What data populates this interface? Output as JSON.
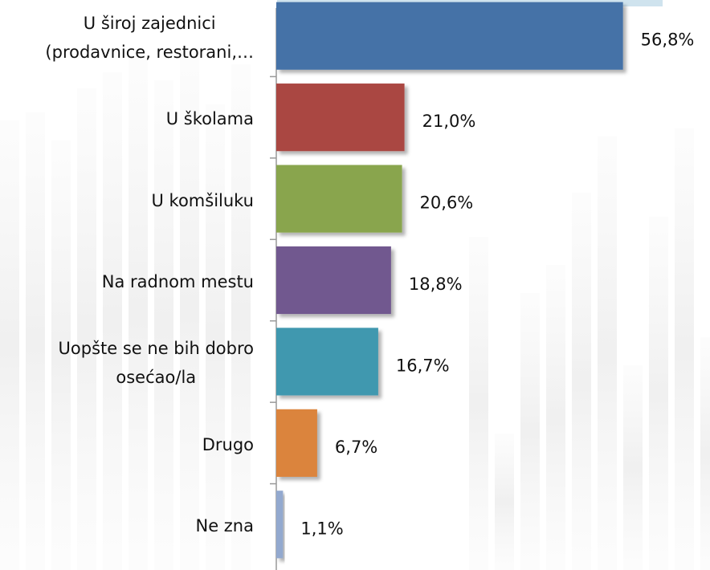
{
  "chart_data": {
    "type": "bar",
    "orientation": "horizontal",
    "categories": [
      "U široj zajednici\n(prodavnice, restorani,…",
      "U školama",
      "U komšiluku",
      "Na radnom mestu",
      "Uopšte se ne bih dobro\nosećao/la",
      "Drugo",
      "Ne zna"
    ],
    "values": [
      56.8,
      21.0,
      20.6,
      18.8,
      16.7,
      6.7,
      1.1
    ],
    "value_labels": [
      "56,8%",
      "21,0%",
      "20,6%",
      "18,8%",
      "16,7%",
      "6,7%",
      "1,1%"
    ],
    "colors": [
      "#4572a7",
      "#aa4643",
      "#89a54e",
      "#71588f",
      "#4198af",
      "#db843d",
      "#93a9cf"
    ],
    "xlim": [
      0,
      60
    ]
  }
}
